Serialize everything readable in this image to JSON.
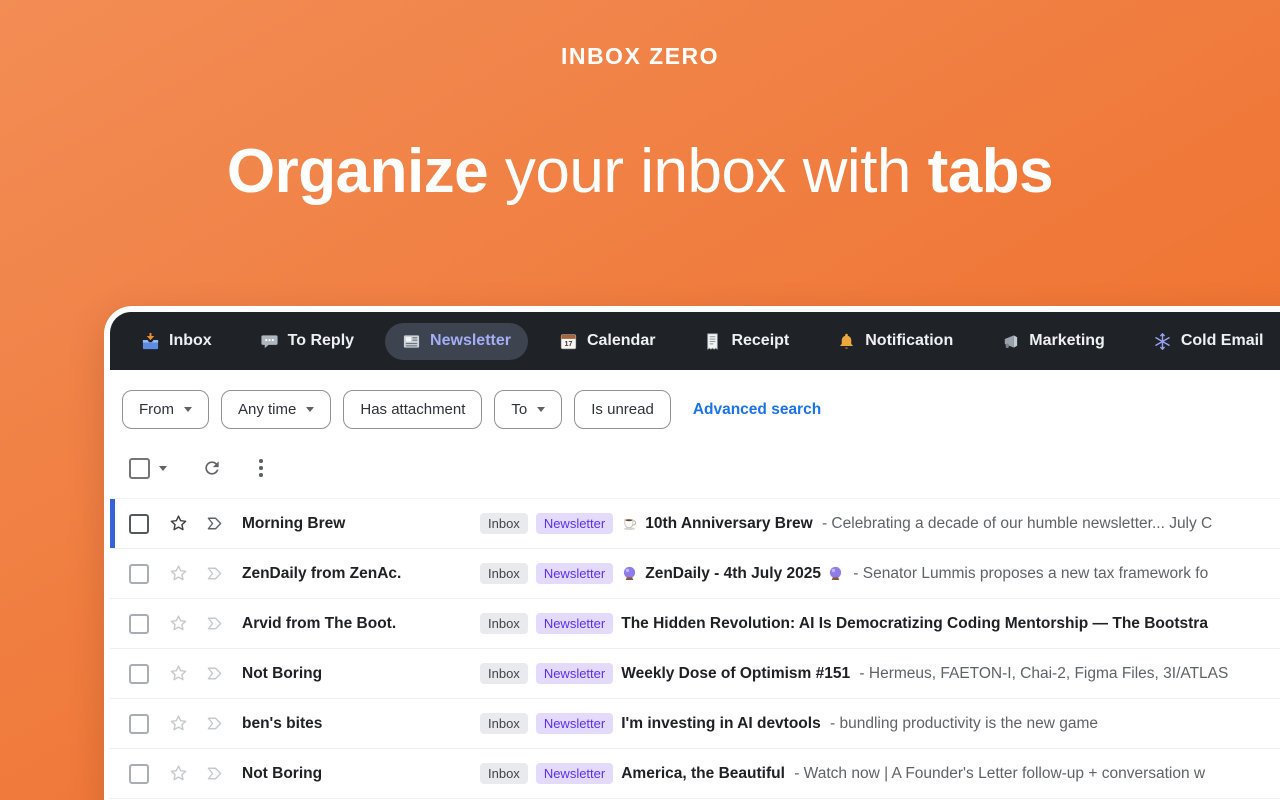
{
  "page": {
    "brand": "INBOX ZERO",
    "heading": {
      "bold_start": "Organize",
      "middle": " your inbox with ",
      "bold_end": "tabs"
    }
  },
  "colors": {
    "background_orange": "#f0793a",
    "tab_bar_bg": "#1f2227",
    "selected_tab_bg": "#3d434f",
    "selected_tab_text": "#a4aef7",
    "link_blue": "#1a73e8",
    "focus_bar_blue": "#3663d9",
    "label_purple_bg": "#e4dbfc",
    "label_purple_text": "#5a2ff0",
    "label_gray_bg": "#e9eaed"
  },
  "mail_app": {
    "tabs": [
      {
        "label": "Inbox",
        "icon": "inbox-tray-icon",
        "selected": false
      },
      {
        "label": "To Reply",
        "icon": "speech-bubble-icon",
        "selected": false
      },
      {
        "label": "Newsletter",
        "icon": "newspaper-icon",
        "selected": true
      },
      {
        "label": "Calendar",
        "icon": "calendar-icon",
        "selected": false
      },
      {
        "label": "Receipt",
        "icon": "receipt-icon",
        "selected": false
      },
      {
        "label": "Notification",
        "icon": "bell-icon",
        "selected": false
      },
      {
        "label": "Marketing",
        "icon": "megaphone-icon",
        "selected": false
      },
      {
        "label": "Cold Email",
        "icon": "snowflake-icon",
        "selected": false
      }
    ],
    "filters": [
      {
        "label": "From",
        "dropdown": true
      },
      {
        "label": "Any time",
        "dropdown": true
      },
      {
        "label": "Has attachment",
        "dropdown": false
      },
      {
        "label": "To",
        "dropdown": true
      },
      {
        "label": "Is unread",
        "dropdown": false
      }
    ],
    "advanced_search_label": "Advanced search",
    "toolbar_icons": [
      "select-all-checkbox",
      "dropdown-caret",
      "refresh-icon",
      "more-options-icon"
    ],
    "emails": [
      {
        "sender": "Morning Brew",
        "labels": [
          {
            "text": "Inbox",
            "type": "gray"
          },
          {
            "text": "Newsletter",
            "type": "purple"
          }
        ],
        "subject_icon": "coffee-icon",
        "subject": "10th Anniversary Brew",
        "subject_suffix_icon": null,
        "snippet": "Celebrating a decade of our humble newsletter... July C",
        "focused": true
      },
      {
        "sender": "ZenDaily from ZenAc.",
        "labels": [
          {
            "text": "Inbox",
            "type": "gray"
          },
          {
            "text": "Newsletter",
            "type": "purple"
          }
        ],
        "subject_icon": "crystal-ball-icon",
        "subject": "ZenDaily - 4th July 2025",
        "subject_suffix_icon": "crystal-ball-icon",
        "snippet": "Senator Lummis proposes a new tax framework fo",
        "focused": false
      },
      {
        "sender": "Arvid from The Boot.",
        "labels": [
          {
            "text": "Inbox",
            "type": "gray"
          },
          {
            "text": "Newsletter",
            "type": "purple"
          }
        ],
        "subject_icon": null,
        "subject": "The Hidden Revolution: AI Is Democratizing Coding Mentorship — The Bootstra",
        "subject_suffix_icon": null,
        "snippet": "",
        "focused": false
      },
      {
        "sender": "Not Boring",
        "labels": [
          {
            "text": "Inbox",
            "type": "gray"
          },
          {
            "text": "Newsletter",
            "type": "purple"
          }
        ],
        "subject_icon": null,
        "subject": "Weekly Dose of Optimism #151",
        "subject_suffix_icon": null,
        "snippet": "Hermeus, FAETON-I, Chai-2, Figma Files, 3I/ATLAS",
        "focused": false
      },
      {
        "sender": "ben's bites",
        "labels": [
          {
            "text": "Inbox",
            "type": "gray"
          },
          {
            "text": "Newsletter",
            "type": "purple"
          }
        ],
        "subject_icon": null,
        "subject": "I'm investing in AI devtools",
        "subject_suffix_icon": null,
        "snippet": "bundling productivity is the new game",
        "focused": false
      },
      {
        "sender": "Not Boring",
        "labels": [
          {
            "text": "Inbox",
            "type": "gray"
          },
          {
            "text": "Newsletter",
            "type": "purple"
          }
        ],
        "subject_icon": null,
        "subject": "America, the Beautiful",
        "subject_suffix_icon": null,
        "snippet": "Watch now | A Founder's Letter follow-up + conversation w",
        "focused": false
      }
    ]
  }
}
